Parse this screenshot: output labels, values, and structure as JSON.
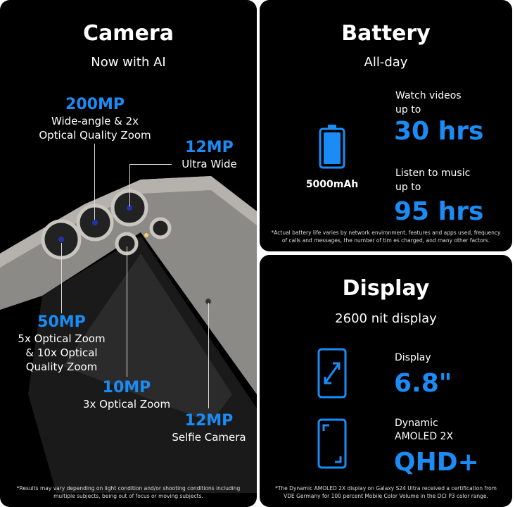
{
  "camera": {
    "title": "Camera",
    "subtitle": "Now with AI",
    "specs": [
      {
        "value": "200MP",
        "desc": [
          "Wide-angle & 2x",
          "Optical Quality Zoom"
        ]
      },
      {
        "value": "12MP",
        "desc": [
          "Ultra Wide"
        ]
      },
      {
        "value": "50MP",
        "desc": [
          "5x Optical Zoom",
          "& 10x Optical",
          "Quality Zoom"
        ]
      },
      {
        "value": "10MP",
        "desc": [
          "3x Optical Zoom"
        ]
      },
      {
        "value": "12MP",
        "desc": [
          "Selfie Camera"
        ]
      }
    ],
    "footnote": "*Results may vary depending on light condition and/or shooting conditions including multiple subjects, being out of focus or moving subjects."
  },
  "battery": {
    "title": "Battery",
    "subtitle": "All-day",
    "capacity": "5000mAh",
    "video_label": [
      "Watch videos",
      "up to"
    ],
    "video_value": "30 hrs",
    "music_label": [
      "Listen to music",
      "up to"
    ],
    "music_value": "95 hrs",
    "footnote": "*Actual battery life varies by network environment, features and apps used, frequency of calls and messages, the number of tim es charged, and many other factors."
  },
  "display": {
    "title": "Display",
    "subtitle": "2600 nit display",
    "size_label": "Display",
    "size_value": "6.8\"",
    "type_label": [
      "Dynamic",
      "AMOLED 2X"
    ],
    "type_value": "QHD+",
    "footnote": "*The Dynamic AMOLED 2X display on Galaxy S24 Ultra received a certification from VDE Germany for 100 percent Mobile Color Volume in the DCI P3 color range."
  },
  "colors": {
    "accent": "#1b8cf5",
    "background": "#000000"
  }
}
